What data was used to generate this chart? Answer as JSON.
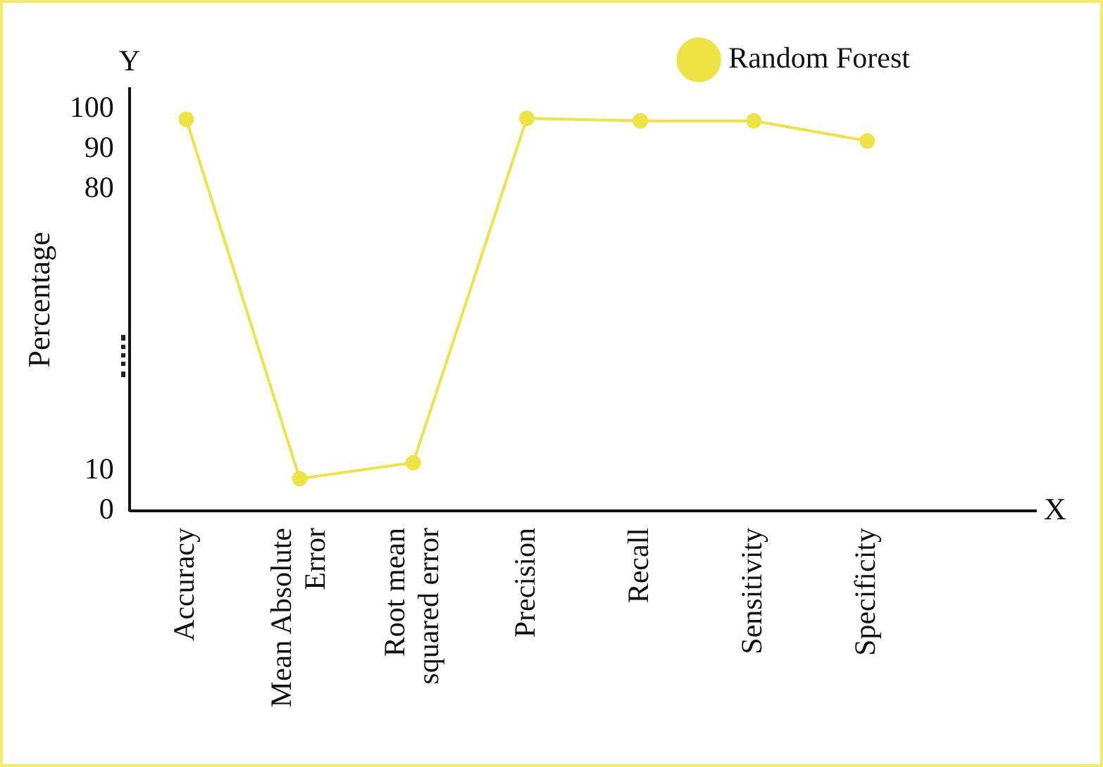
{
  "chart_data": {
    "type": "line",
    "xlabel": "X",
    "ylabel": "Percentage",
    "annotations": [
      "Y"
    ],
    "categories": [
      "Accuracy",
      "Mean Absolute Error",
      "Root mean squared error",
      "Precision",
      "Recall",
      "Sensitivity",
      "Specificity"
    ],
    "series": [
      {
        "name": "Random Forest",
        "color": "#ede443",
        "values": [
          97.4,
          8,
          12,
          97.6,
          97,
          97,
          92
        ]
      }
    ],
    "ylim": [
      0,
      105
    ],
    "yticks": [
      0,
      10,
      80,
      90,
      100
    ],
    "grid": false,
    "legend": "top right",
    "marker": "circle",
    "line_style": "solid"
  }
}
